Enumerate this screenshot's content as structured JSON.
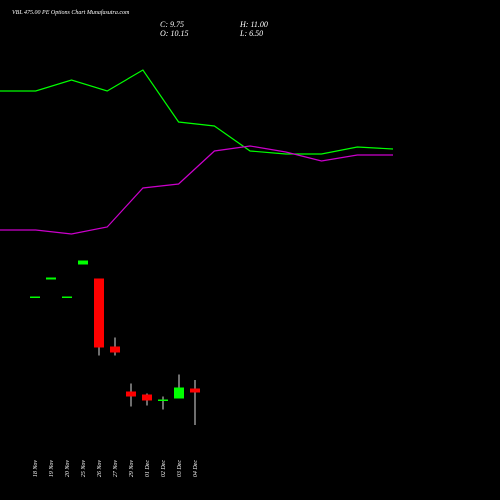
{
  "chart_data": [
    {
      "type": "candlestick",
      "title": "VBL 475.00 PE Options Chart Munafasutra.com",
      "ohlc_labels": [
        "C: 9.75",
        "H: 11.00",
        "O: 10.15",
        "L: 6.50"
      ],
      "categories": [
        "18 Nov",
        "19 Nov",
        "20 Nov",
        "25 Nov",
        "26 Nov",
        "27 Nov",
        "29 Nov",
        "01 Dec",
        "02 Dec",
        "03 Dec",
        "04 Dec"
      ],
      "open": [
        19.35,
        21.05,
        19.35,
        22.55,
        21.15,
        14.35,
        9.85,
        9.55,
        9.05,
        9.15,
        10.15
      ],
      "high": [
        19.35,
        21.25,
        19.35,
        22.95,
        21.15,
        15.25,
        10.65,
        9.65,
        9.35,
        11.55,
        11.0
      ],
      "low": [
        19.35,
        21.05,
        19.35,
        22.55,
        13.45,
        13.45,
        8.35,
        8.45,
        8.05,
        9.15,
        6.5
      ],
      "close": [
        19.35,
        21.25,
        19.35,
        22.95,
        14.25,
        13.75,
        9.35,
        8.95,
        9.05,
        10.25,
        9.75
      ],
      "up_color": "#00ff00",
      "down_color": "#ff0000",
      "wick_color": "#dddddd",
      "ylim": [
        0,
        48
      ]
    },
    {
      "type": "line",
      "series": [
        {
          "color": "#00ff00",
          "values": [
            409,
            409,
            420,
            409,
            430,
            378,
            374,
            349,
            346,
            346,
            353,
            351
          ]
        },
        {
          "color": "#cc00cc",
          "values": [
            270,
            270,
            266,
            273,
            312,
            316,
            349,
            354,
            348,
            339,
            345,
            345
          ]
        }
      ],
      "ylim": [
        0,
        500
      ]
    }
  ]
}
